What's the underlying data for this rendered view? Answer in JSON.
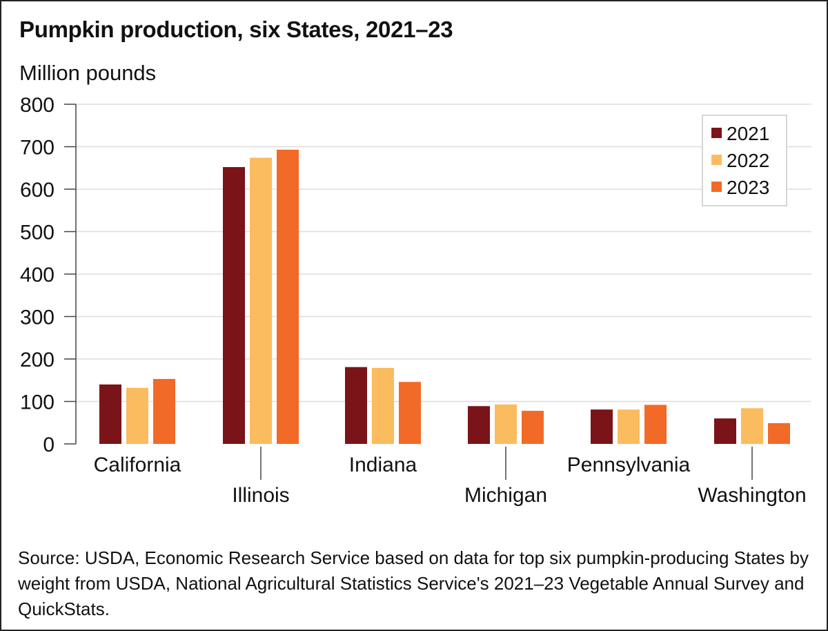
{
  "chart_data": {
    "type": "bar",
    "title": "Pumpkin production, six States, 2021–23",
    "ylabel": "Million pounds",
    "xlabel": "",
    "categories": [
      "California",
      "Illinois",
      "Indiana",
      "Michigan",
      "Pennsylvania",
      "Washington"
    ],
    "series": [
      {
        "name": "2021",
        "color": "#7a1418",
        "values": [
          140,
          652,
          181,
          89,
          81,
          60
        ]
      },
      {
        "name": "2022",
        "color": "#fbbb5f",
        "values": [
          132,
          674,
          179,
          93,
          81,
          84
        ]
      },
      {
        "name": "2023",
        "color": "#f26a27",
        "values": [
          153,
          693,
          146,
          78,
          92,
          49
        ]
      }
    ],
    "ylim": [
      0,
      800
    ],
    "yticks": [
      0,
      100,
      200,
      300,
      400,
      500,
      600,
      700,
      800
    ],
    "grid": true,
    "legend": "top-right"
  },
  "source": "Source: USDA, Economic Research Service based on data for top six pumpkin-producing States by weight from USDA, National Agricultural Statistics Service's 2021–23 Vegetable Annual Survey and QuickStats."
}
